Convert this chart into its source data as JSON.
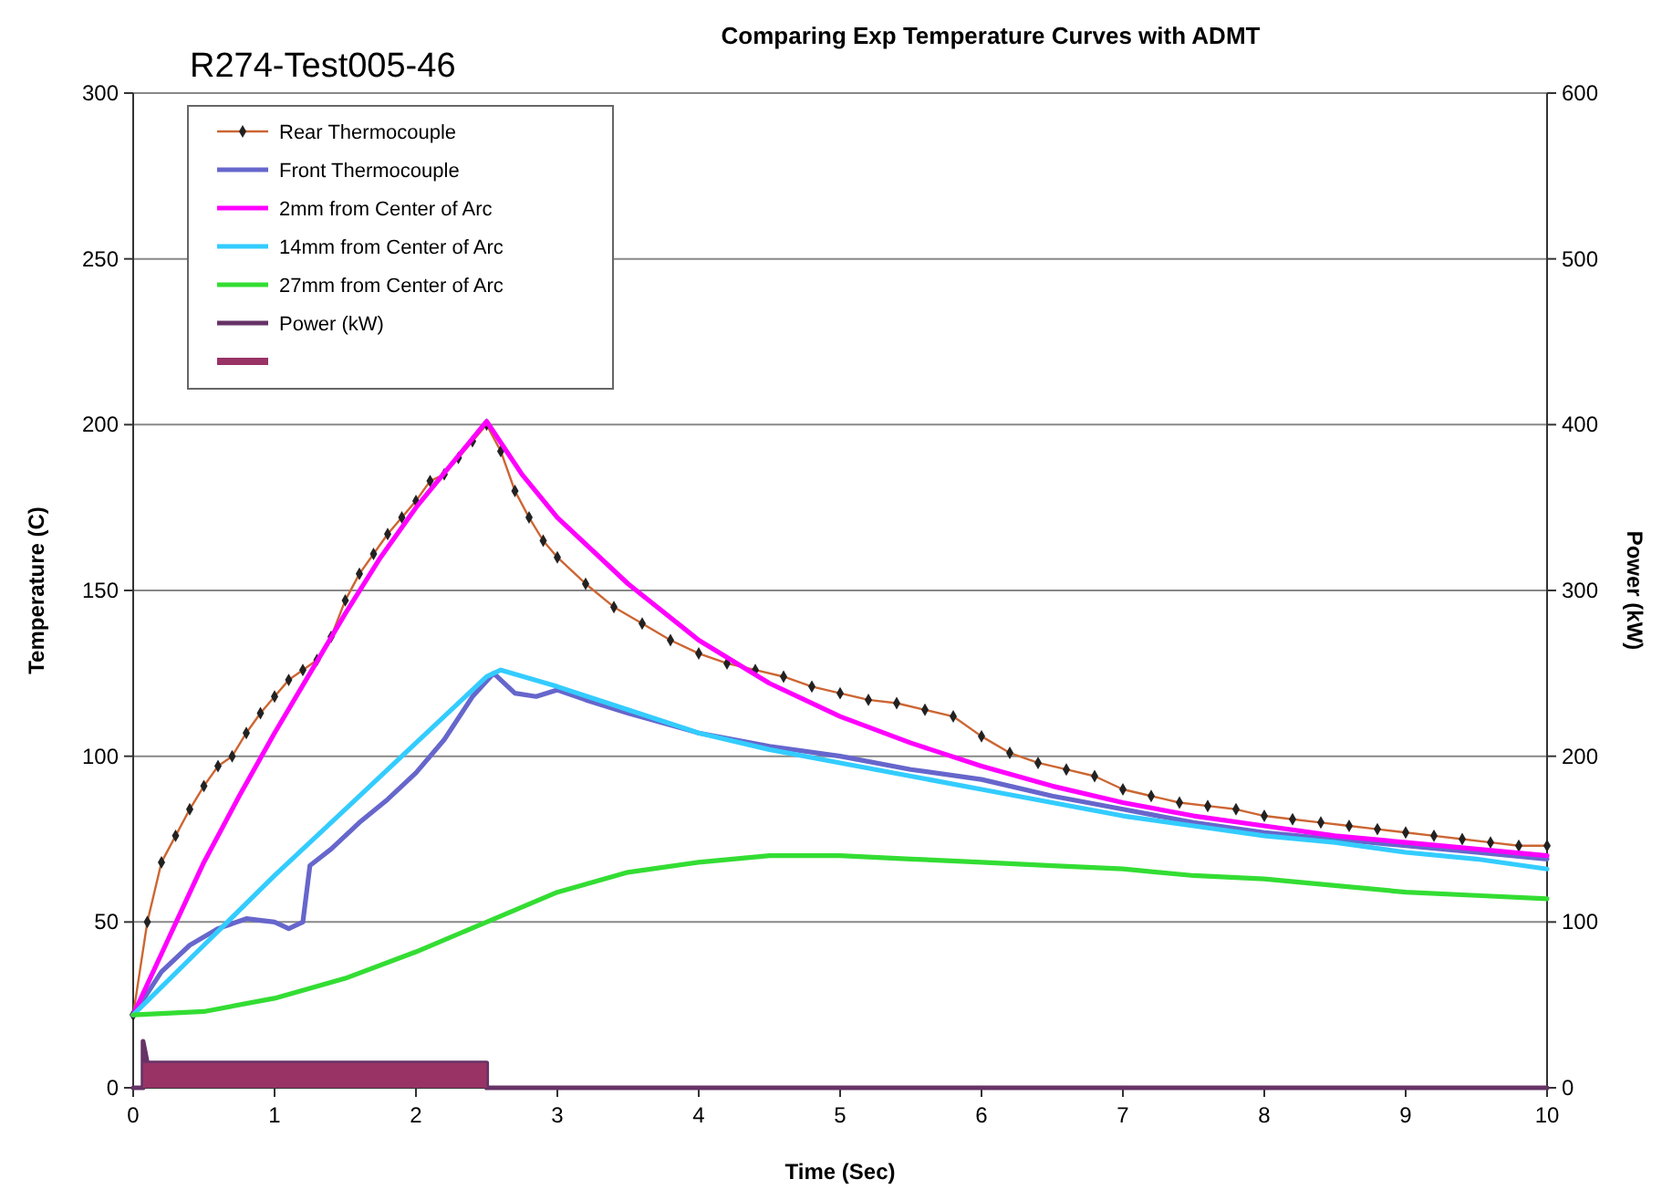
{
  "chart_data": {
    "type": "line",
    "title": "Comparing Exp Temperature Curves with ADMT",
    "xlabel": "Time (Sec)",
    "ylabel": "Temperature (C)",
    "y2label": "Power (kW)",
    "annotations": [
      "R274-Test005-46"
    ],
    "xlim": [
      0,
      10
    ],
    "xticks": [
      0,
      1,
      2,
      3,
      4,
      5,
      6,
      7,
      8,
      9,
      10
    ],
    "ylim": [
      0,
      300
    ],
    "yticks": [
      0,
      50,
      100,
      150,
      200,
      250,
      300
    ],
    "y2lim": [
      0,
      600
    ],
    "y2ticks": [
      0,
      100,
      200,
      300,
      400,
      500,
      600
    ],
    "grid": "y",
    "legend": "top left",
    "series": [
      {
        "name": "Rear Thermocouple",
        "color": "#cc6633",
        "marker": "diamond",
        "x": [
          0,
          0.1,
          0.2,
          0.3,
          0.4,
          0.5,
          0.6,
          0.7,
          0.8,
          0.9,
          1.0,
          1.1,
          1.2,
          1.3,
          1.4,
          1.5,
          1.6,
          1.7,
          1.8,
          1.9,
          2.0,
          2.1,
          2.2,
          2.3,
          2.4,
          2.5,
          2.6,
          2.7,
          2.8,
          2.9,
          3.0,
          3.2,
          3.4,
          3.6,
          3.8,
          4.0,
          4.2,
          4.4,
          4.6,
          4.8,
          5.0,
          5.2,
          5.4,
          5.6,
          5.8,
          6.0,
          6.2,
          6.4,
          6.6,
          6.8,
          7.0,
          7.2,
          7.4,
          7.6,
          7.8,
          8.0,
          8.2,
          8.4,
          8.6,
          8.8,
          9.0,
          9.2,
          9.4,
          9.6,
          9.8,
          10
        ],
        "values": [
          22,
          50,
          68,
          76,
          84,
          91,
          97,
          100,
          107,
          113,
          118,
          123,
          126,
          129,
          136,
          147,
          155,
          161,
          167,
          172,
          177,
          183,
          185,
          190,
          195,
          200,
          192,
          180,
          172,
          165,
          160,
          152,
          145,
          140,
          135,
          131,
          128,
          126,
          124,
          121,
          119,
          117,
          116,
          114,
          112,
          106,
          101,
          98,
          96,
          94,
          90,
          88,
          86,
          85,
          84,
          82,
          81,
          80,
          79,
          78,
          77,
          76,
          75,
          74,
          73,
          73
        ]
      },
      {
        "name": "Front Thermocouple",
        "color": "#6666cc",
        "x": [
          0,
          0.2,
          0.4,
          0.6,
          0.8,
          1.0,
          1.1,
          1.2,
          1.25,
          1.4,
          1.6,
          1.8,
          2.0,
          2.2,
          2.4,
          2.55,
          2.7,
          2.85,
          3,
          3.2,
          3.5,
          4,
          4.5,
          5,
          5.5,
          6,
          6.5,
          7,
          7.5,
          8,
          8.5,
          9,
          9.5,
          10
        ],
        "values": [
          22,
          35,
          43,
          48,
          51,
          50,
          48,
          50,
          67,
          72,
          80,
          87,
          95,
          105,
          118,
          125,
          119,
          118,
          120,
          117,
          113,
          107,
          103,
          100,
          96,
          93,
          88,
          84,
          80,
          77,
          75,
          73,
          71,
          69
        ]
      },
      {
        "name": "2mm from Center of Arc",
        "color": "#ff00ff",
        "x": [
          0,
          0.25,
          0.5,
          0.75,
          1,
          1.25,
          1.5,
          1.75,
          2,
          2.25,
          2.5,
          2.75,
          3,
          3.5,
          4,
          4.5,
          5,
          5.5,
          6,
          6.5,
          7,
          7.5,
          8,
          8.5,
          9,
          9.5,
          10
        ],
        "values": [
          22,
          45,
          68,
          88,
          107,
          125,
          143,
          160,
          175,
          188,
          201,
          185,
          172,
          152,
          135,
          122,
          112,
          104,
          97,
          91,
          86,
          82,
          79,
          76,
          74,
          72,
          70
        ]
      },
      {
        "name": "14mm from Center of Arc",
        "color": "#33ccff",
        "x": [
          0,
          0.5,
          1,
          1.5,
          2,
          2.5,
          2.6,
          3,
          3.5,
          4,
          4.5,
          5,
          5.5,
          6,
          6.5,
          7,
          7.5,
          8,
          8.5,
          9,
          9.5,
          10
        ],
        "values": [
          22,
          43,
          64,
          84,
          104,
          124,
          126,
          121,
          114,
          107,
          102,
          98,
          94,
          90,
          86,
          82,
          79,
          76,
          74,
          71,
          69,
          66
        ]
      },
      {
        "name": "27mm from Center of Arc",
        "color": "#33dd33",
        "x": [
          0,
          0.5,
          1,
          1.5,
          2,
          2.5,
          3,
          3.5,
          4,
          4.5,
          5,
          5.5,
          6,
          6.5,
          7,
          7.5,
          8,
          8.5,
          9,
          9.5,
          10
        ],
        "values": [
          22,
          23,
          27,
          33,
          41,
          50,
          59,
          65,
          68,
          70,
          70,
          69,
          68,
          67,
          66,
          64,
          63,
          61,
          59,
          58,
          57
        ]
      },
      {
        "name": "Power (kW)",
        "color": "#663366",
        "axis": "y2",
        "x": [
          0,
          0.07,
          0.07,
          0.1,
          2.5,
          2.5,
          10
        ],
        "values": [
          0,
          0,
          28,
          15,
          15,
          0,
          0
        ]
      },
      {
        "type": "area",
        "color": "#993366",
        "axis": "y2",
        "x": [
          0.07,
          2.5
        ],
        "values": [
          15,
          15
        ]
      }
    ]
  }
}
